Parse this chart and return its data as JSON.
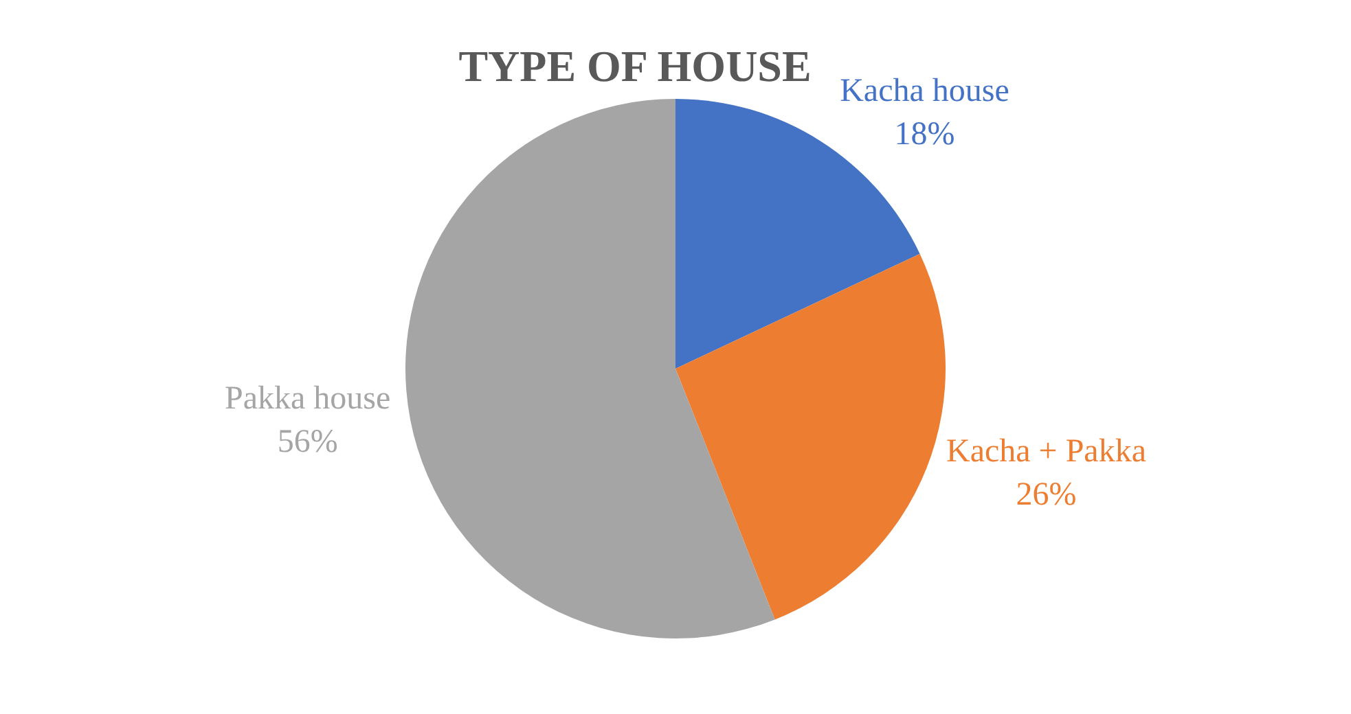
{
  "chart_data": {
    "type": "pie",
    "title": "TYPE OF HOUSE",
    "categories": [
      "Kacha house",
      "Kacha + Pakka",
      "Pakka house"
    ],
    "values": [
      18,
      26,
      56
    ],
    "value_labels": [
      "18%",
      "26%",
      "56%"
    ],
    "colors": [
      "#4472c4",
      "#ed7d31",
      "#a5a5a5"
    ],
    "legend": false
  }
}
